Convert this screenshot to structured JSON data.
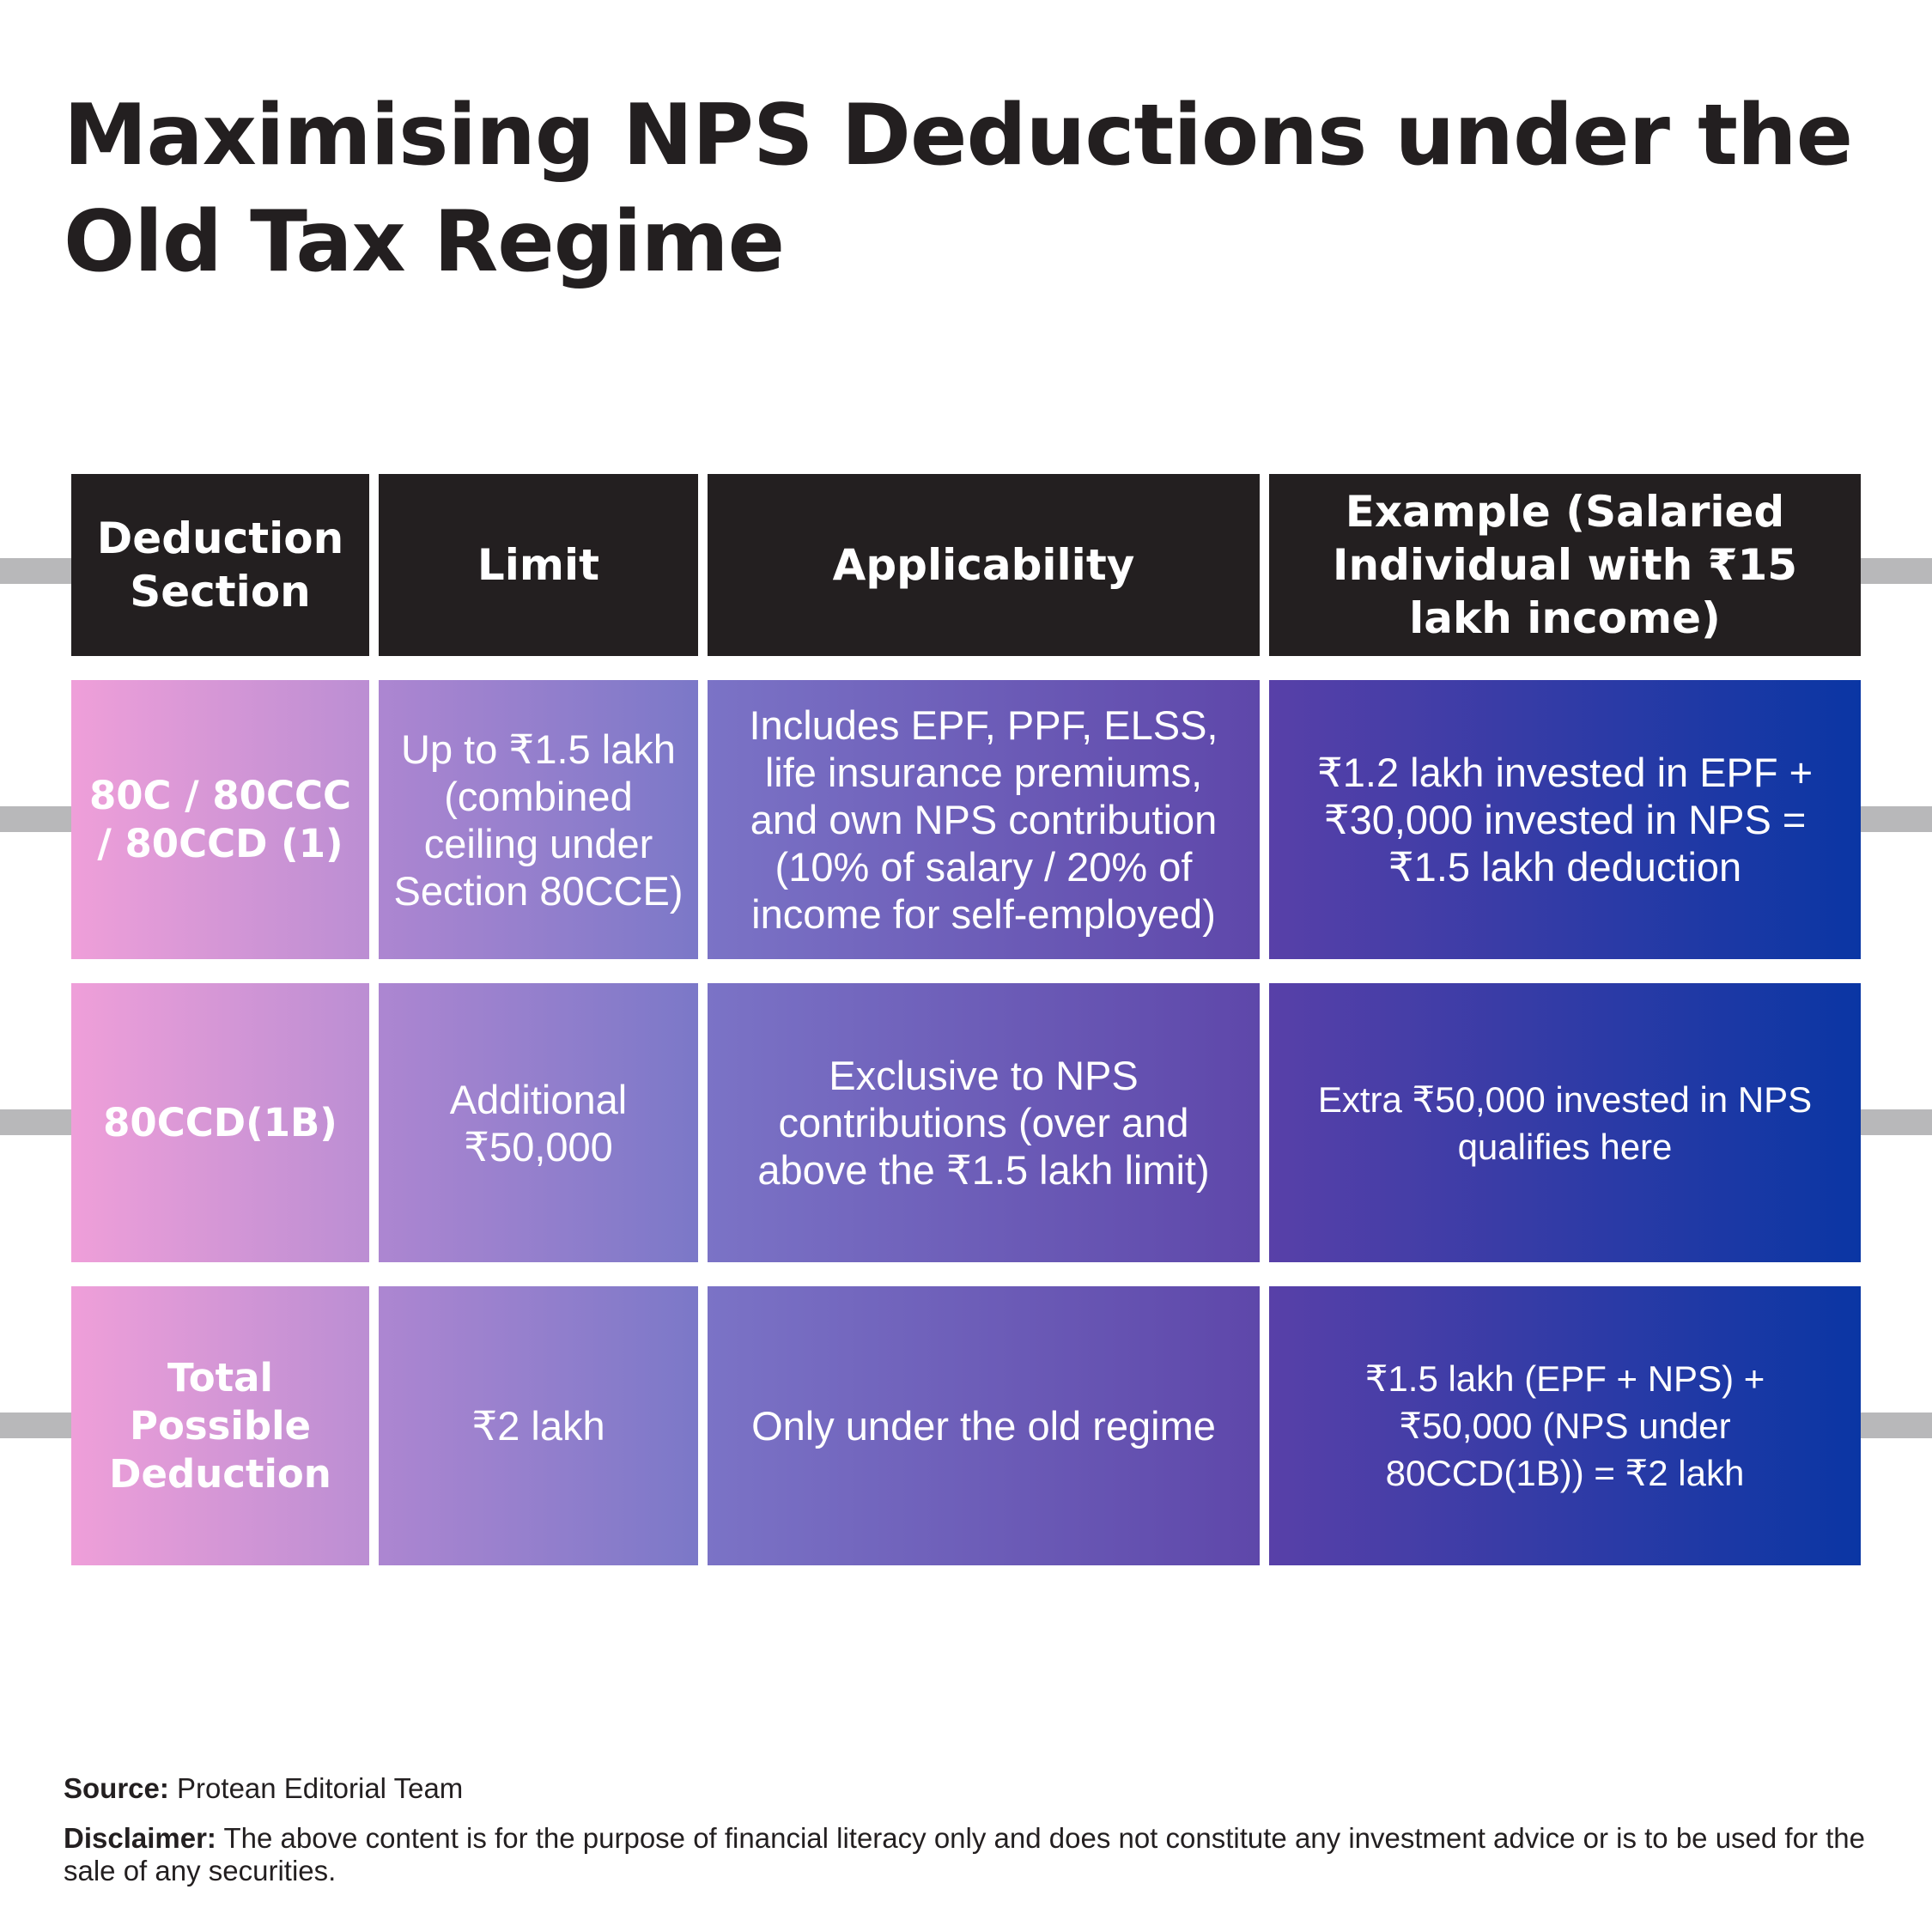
{
  "title": "Maximising NPS Deductions under the Old Tax Regime",
  "table": {
    "headers": [
      "Deduction Section",
      "Limit",
      "Applicability",
      "Example (Salaried Individual with ₹15 lakh income)"
    ],
    "rows": [
      {
        "section": "80C / 80CCC / 80CCD (1)",
        "limit": "Up to ₹1.5 lakh (combined ceiling under Section 80CCE)",
        "applicability": "Includes EPF, PPF, ELSS, life insurance premiums, and own NPS contribution (10% of salary / 20% of income for self-employed)",
        "example": "₹1.2 lakh invested in EPF + ₹30,000 invested in NPS = ₹1.5 lakh deduction"
      },
      {
        "section": "80CCD(1B)",
        "limit": "Additional ₹50,000",
        "applicability": "Exclusive to NPS contributions (over and above the ₹1.5 lakh limit)",
        "example": "Extra ₹50,000 invested in NPS qualifies here"
      },
      {
        "section": "Total Possible Deduction",
        "limit": "₹2 lakh",
        "applicability": "Only under the old regime",
        "example": "₹1.5 lakh (EPF + NPS) + ₹50,000 (NPS under 80CCD(1B)) = ₹2 lakh"
      }
    ]
  },
  "footer": {
    "source_label": "Source:",
    "source_text": "Protean Editorial Team",
    "disclaimer_label": "Disclaimer:",
    "disclaimer_text": "The above content is for the purpose of financial literacy only and does not constitute any investment advice or is to be used for the sale of any securities."
  },
  "colors": {
    "header_bg": "#231f20",
    "col1_gradient": [
      "#ef9fd9",
      "#bb8ed3"
    ],
    "col2_gradient": [
      "#ad86d1",
      "#7b78c8"
    ],
    "col3_gradient": [
      "#7b73c6",
      "#5e47aa"
    ],
    "col4_gradient": [
      "#5840a8",
      "#0a36a4"
    ],
    "connector": "#b8b8ba"
  }
}
